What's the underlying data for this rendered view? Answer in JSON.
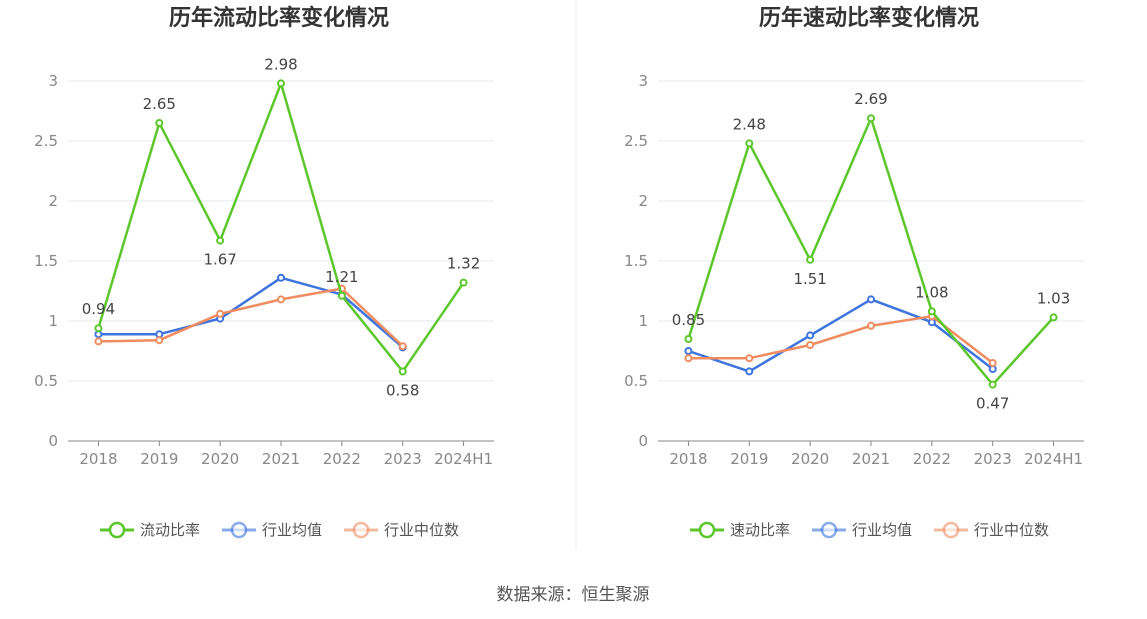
{
  "source": "数据来源：恒生聚源",
  "chart_data": [
    {
      "type": "line",
      "title": "历年流动比率变化情况",
      "categories": [
        "2018",
        "2019",
        "2020",
        "2021",
        "2022",
        "2023",
        "2024H1"
      ],
      "ylim": [
        0,
        3
      ],
      "yticks": [
        "0",
        "0.5",
        "1",
        "1.5",
        "2",
        "2.5",
        "3"
      ],
      "grid": true,
      "legend_position": "bottom",
      "series": [
        {
          "name": "流动比率",
          "color": "#5bc72b",
          "values": [
            0.94,
            2.65,
            1.67,
            2.98,
            1.21,
            0.58,
            1.32
          ],
          "labels": [
            "0.94",
            "2.65",
            "1.67",
            "2.98",
            "1.21",
            "0.58",
            "1.32"
          ]
        },
        {
          "name": "行业均值",
          "color": "#3e74dd",
          "values": [
            0.89,
            0.89,
            1.02,
            1.36,
            1.22,
            0.78,
            null
          ]
        },
        {
          "name": "行业中位数",
          "color": "#f08c60",
          "values": [
            0.83,
            0.84,
            1.06,
            1.18,
            1.27,
            0.79,
            null
          ]
        }
      ]
    },
    {
      "type": "line",
      "title": "历年速动比率变化情况",
      "categories": [
        "2018",
        "2019",
        "2020",
        "2021",
        "2022",
        "2023",
        "2024H1"
      ],
      "ylim": [
        0,
        3
      ],
      "yticks": [
        "0",
        "0.5",
        "1",
        "1.5",
        "2",
        "2.5",
        "3"
      ],
      "grid": true,
      "legend_position": "bottom",
      "series": [
        {
          "name": "速动比率",
          "color": "#5bc72b",
          "values": [
            0.85,
            2.48,
            1.51,
            2.69,
            1.08,
            0.47,
            1.03
          ],
          "labels": [
            "0.85",
            "2.48",
            "1.51",
            "2.69",
            "1.08",
            "0.47",
            "1.03"
          ]
        },
        {
          "name": "行业均值",
          "color": "#3e74dd",
          "values": [
            0.75,
            0.58,
            0.88,
            1.18,
            0.99,
            0.6,
            null
          ]
        },
        {
          "name": "行业中位数",
          "color": "#f08c60",
          "values": [
            0.69,
            0.69,
            0.8,
            0.96,
            1.04,
            0.65,
            null
          ]
        }
      ]
    }
  ]
}
